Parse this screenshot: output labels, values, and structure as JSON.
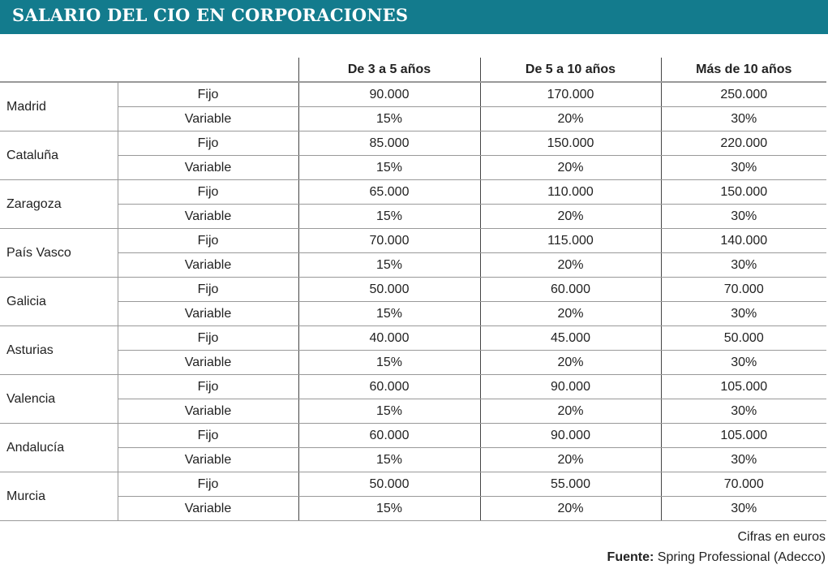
{
  "title": "SALARIO DEL CIO EN CORPORACIONES",
  "columns": [
    "De 3 a 5 años",
    "De 5 a 10 años",
    "Más de 10 años"
  ],
  "rows": [
    {
      "region": "Madrid",
      "fijo": [
        "90.000",
        "170.000",
        "250.000"
      ],
      "variable": [
        "15%",
        "20%",
        "30%"
      ]
    },
    {
      "region": "Cataluña",
      "fijo": [
        "85.000",
        "150.000",
        "220.000"
      ],
      "variable": [
        "15%",
        "20%",
        "30%"
      ]
    },
    {
      "region": "Zaragoza",
      "fijo": [
        "65.000",
        "110.000",
        "150.000"
      ],
      "variable": [
        "15%",
        "20%",
        "30%"
      ]
    },
    {
      "region": "País Vasco",
      "fijo": [
        "70.000",
        "115.000",
        "140.000"
      ],
      "variable": [
        "15%",
        "20%",
        "30%"
      ]
    },
    {
      "region": "Galicia",
      "fijo": [
        "50.000",
        "60.000",
        "70.000"
      ],
      "variable": [
        "15%",
        "20%",
        "30%"
      ]
    },
    {
      "region": "Asturias",
      "fijo": [
        "40.000",
        "45.000",
        "50.000"
      ],
      "variable": [
        "15%",
        "20%",
        "30%"
      ]
    },
    {
      "region": "Valencia",
      "fijo": [
        "60.000",
        "90.000",
        "105.000"
      ],
      "variable": [
        "15%",
        "20%",
        "30%"
      ]
    },
    {
      "region": "Andalucía",
      "fijo": [
        "60.000",
        "90.000",
        "105.000"
      ],
      "variable": [
        "15%",
        "20%",
        "30%"
      ]
    },
    {
      "region": "Murcia",
      "fijo": [
        "50.000",
        "55.000",
        "70.000"
      ],
      "variable": [
        "15%",
        "20%",
        "30%"
      ]
    }
  ],
  "labels": {
    "fijo": "Fijo",
    "variable": "Variable"
  },
  "footer": {
    "note": "Cifras en euros",
    "source_label": "Fuente:",
    "source": "Spring Professional (Adecco)"
  },
  "colors": {
    "header_bg": "#137b8d"
  }
}
